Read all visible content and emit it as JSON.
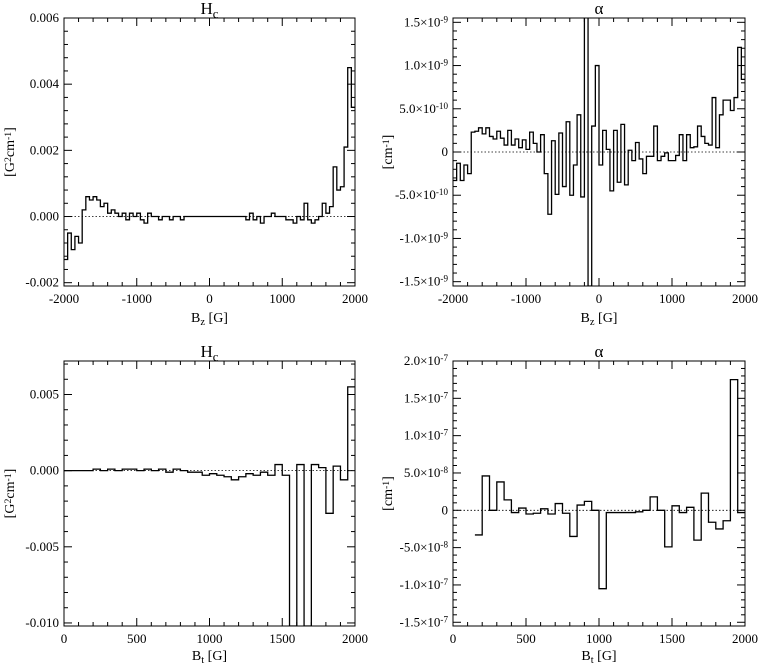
{
  "chart_data": [
    {
      "type": "line",
      "title": "Hc",
      "xlabel": "Bz [G]",
      "ylabel": "[G²cm⁻¹]",
      "xlim": [
        -2000,
        2000
      ],
      "ylim": [
        -0.0021,
        0.006
      ],
      "xticks": [
        -2000,
        -1000,
        0,
        1000,
        2000
      ],
      "yticks": [
        -0.002,
        0.0,
        0.002,
        0.004,
        0.006
      ],
      "ytick_labels": [
        "-0.002",
        "0.000",
        "0.002",
        "0.004",
        "0.006"
      ],
      "zero_line": true,
      "step": true,
      "series": [
        {
          "x": [
            -2000,
            -1950,
            -1900,
            -1850,
            -1800,
            -1750,
            -1700,
            -1650,
            -1600,
            -1550,
            -1500,
            -1450,
            -1400,
            -1350,
            -1300,
            -1250,
            -1200,
            -1150,
            -1100,
            -1050,
            -1000,
            -950,
            -900,
            -850,
            -800,
            -750,
            -700,
            -650,
            -600,
            -550,
            -500,
            -450,
            -400,
            -350,
            -300,
            -250,
            -200,
            -150,
            -100,
            -50,
            0,
            50,
            100,
            150,
            200,
            250,
            300,
            350,
            400,
            450,
            500,
            550,
            600,
            650,
            700,
            750,
            800,
            850,
            900,
            950,
            1000,
            1050,
            1100,
            1150,
            1200,
            1250,
            1300,
            1350,
            1400,
            1450,
            1500,
            1550,
            1600,
            1650,
            1700,
            1750,
            1800,
            1850,
            1900,
            1950
          ],
          "y": [
            -0.0013,
            -0.0005,
            -0.001,
            -0.0006,
            -0.0008,
            0.0002,
            0.0006,
            0.0005,
            0.0006,
            0.0005,
            0.0003,
            0.0004,
            0.0001,
            0.0002,
            0.0001,
            0.0,
            0.0001,
            -0.0001,
            0.0001,
            0.0,
            0.0001,
            -0.0001,
            -0.0002,
            0.0001,
            0.0,
            0.0,
            -0.0001,
            0.0,
            0.0,
            -0.0001,
            0.0,
            0.0,
            -0.0001,
            0.0,
            0.0,
            0.0,
            0.0,
            0.0,
            0.0,
            0.0,
            0.0,
            0.0,
            0.0,
            0.0,
            0.0,
            0.0,
            0.0,
            0.0,
            0.0,
            0.0,
            -0.0001,
            0.0001,
            -0.0001,
            0.0,
            -0.0002,
            0.0,
            0.0,
            0.0001,
            0.0,
            0.0,
            0.0,
            -0.0001,
            -0.0001,
            -0.0002,
            0.0,
            -0.0001,
            0.0004,
            -0.0001,
            -0.0002,
            -0.0001,
            0.0,
            0.0004,
            0.0001,
            0.0003,
            0.0015,
            0.0008,
            0.0009,
            0.0021,
            0.0045,
            0.0033
          ]
        }
      ]
    },
    {
      "type": "line",
      "title": "α",
      "xlabel": "Bz [G]",
      "ylabel": "[cm⁻¹]",
      "xlim": [
        -2000,
        2000
      ],
      "ylim": [
        -1.55e-09,
        1.55e-09
      ],
      "xticks": [
        -2000,
        -1000,
        0,
        1000,
        2000
      ],
      "yticks": [
        -1.5e-09,
        -1e-09,
        -5e-10,
        0,
        5e-10,
        1e-09,
        1.5e-09
      ],
      "ytick_labels": [
        {
          "m": "-1.5×10",
          "e": "-9"
        },
        {
          "m": "-1.0×10",
          "e": "-9"
        },
        {
          "m": "-5.0×10",
          "e": "-10"
        },
        {
          "m": "0",
          "e": ""
        },
        {
          "m": "5.0×10",
          "e": "-10"
        },
        {
          "m": "1.0×10",
          "e": "-9"
        },
        {
          "m": "1.5×10",
          "e": "-9"
        }
      ],
      "zero_line": true,
      "step": true,
      "series": [
        {
          "x": [
            -2000,
            -1950,
            -1900,
            -1850,
            -1800,
            -1750,
            -1700,
            -1650,
            -1600,
            -1550,
            -1500,
            -1450,
            -1400,
            -1350,
            -1300,
            -1250,
            -1200,
            -1150,
            -1100,
            -1050,
            -1000,
            -950,
            -900,
            -850,
            -800,
            -750,
            -700,
            -650,
            -600,
            -550,
            -500,
            -450,
            -400,
            -350,
            -300,
            -250,
            -200,
            -150,
            -100,
            -50,
            0,
            50,
            100,
            150,
            200,
            250,
            300,
            350,
            400,
            450,
            500,
            550,
            600,
            650,
            700,
            750,
            800,
            850,
            900,
            950,
            1000,
            1050,
            1100,
            1150,
            1200,
            1250,
            1300,
            1350,
            1400,
            1450,
            1500,
            1550,
            1600,
            1650,
            1700,
            1750,
            1800,
            1850,
            1900,
            1950
          ],
          "y": [
            -3.3e-10,
            -1.3e-10,
            -3.3e-10,
            -1.5e-10,
            -2.5e-10,
            2.3e-10,
            2.4e-10,
            2.8e-10,
            2.1e-10,
            2.8e-10,
            1.8e-10,
            1.5e-10,
            2.4e-10,
            1.6e-10,
            8e-11,
            2.5e-10,
            8e-11,
            1.5e-10,
            5e-11,
            1.4e-10,
            3e-11,
            2.3e-10,
            1e-10,
            0,
            2e-10,
            -2.5e-10,
            -7.2e-10,
            1.3e-10,
            -4.9e-10,
            2.2e-10,
            -4e-10,
            3.5e-10,
            -5e-10,
            -1.5e-10,
            4.3e-10,
            -5.2e-10,
            1.62e-09,
            -1.55e-09,
            3e-10,
            1e-09,
            -1.5e-10,
            2.5e-10,
            3e-11,
            -4.5e-10,
            2.5e-10,
            -3.5e-10,
            3.2e-10,
            -3.8e-10,
            2e-11,
            -1e-10,
            1.1e-10,
            -8e-11,
            -2.5e-10,
            -5e-11,
            -5e-11,
            3e-10,
            -1e-10,
            -5e-11,
            -1e-11,
            -1e-10,
            -1e-10,
            -4e-11,
            2e-10,
            -1e-10,
            2e-10,
            5e-11,
            6e-11,
            3e-10,
            1.8e-10,
            1e-10,
            8e-11,
            6.3e-10,
            5e-11,
            4.3e-10,
            6e-10,
            6e-10,
            4.8e-10,
            6.3e-10,
            1.21e-09,
            8.4e-10
          ]
        }
      ]
    },
    {
      "type": "line",
      "title": "Hc",
      "xlabel": "Bt [G]",
      "ylabel": "[G²cm⁻¹]",
      "xlim": [
        0,
        2000
      ],
      "ylim": [
        -0.0102,
        0.0072
      ],
      "xticks": [
        0,
        500,
        1000,
        1500,
        2000
      ],
      "yticks": [
        -0.01,
        -0.005,
        0.0,
        0.005
      ],
      "ytick_labels": [
        "-0.010",
        "-0.005",
        "0.000",
        "0.005"
      ],
      "zero_line": true,
      "step": true,
      "series": [
        {
          "x": [
            0,
            50,
            100,
            150,
            200,
            250,
            300,
            350,
            400,
            450,
            500,
            550,
            600,
            650,
            700,
            750,
            800,
            850,
            900,
            950,
            1000,
            1050,
            1100,
            1150,
            1200,
            1250,
            1300,
            1350,
            1400,
            1450,
            1500,
            1550,
            1600,
            1650,
            1700,
            1750,
            1800,
            1850,
            1900,
            1950
          ],
          "y": [
            0.0,
            0.0,
            0.0,
            0.0,
            0.0001,
            0.0,
            0.0001,
            0.0,
            0.0001,
            0.0001,
            0.0,
            0.0001,
            0.0,
            0.0001,
            -0.0001,
            0.0001,
            0.0,
            -0.0001,
            -0.0001,
            -0.0003,
            -0.0002,
            -0.0003,
            -0.0004,
            -0.0006,
            -0.0004,
            -0.0002,
            -0.0003,
            -0.0001,
            -0.0003,
            0.0004,
            -0.0003,
            -0.0102,
            0.0004,
            -0.0102,
            0.0004,
            0.0002,
            -0.0028,
            0.0003,
            -0.0006,
            0.0055
          ]
        }
      ]
    },
    {
      "type": "line",
      "title": "α",
      "xlabel": "Bt [G]",
      "ylabel": "[cm⁻¹]",
      "xlim": [
        0,
        2000
      ],
      "ylim": [
        -1.55e-07,
        2e-07
      ],
      "xticks": [
        0,
        500,
        1000,
        1500,
        2000
      ],
      "yticks": [
        -1.5e-07,
        -1e-07,
        -5e-08,
        0,
        5e-08,
        1e-07,
        1.5e-07,
        2e-07
      ],
      "ytick_labels": [
        {
          "m": "-1.5×10",
          "e": "-7"
        },
        {
          "m": "-1.0×10",
          "e": "-7"
        },
        {
          "m": "-5.0×10",
          "e": "-8"
        },
        {
          "m": "0",
          "e": ""
        },
        {
          "m": "5.0×10",
          "e": "-8"
        },
        {
          "m": "1.0×10",
          "e": "-7"
        },
        {
          "m": "1.5×10",
          "e": "-7"
        },
        {
          "m": "2.0×10",
          "e": "-7"
        }
      ],
      "zero_line": true,
      "step": true,
      "series": [
        {
          "x": [
            150,
            200,
            250,
            300,
            350,
            400,
            450,
            500,
            550,
            600,
            650,
            700,
            750,
            800,
            850,
            900,
            950,
            1000,
            1050,
            1100,
            1150,
            1200,
            1250,
            1300,
            1350,
            1400,
            1450,
            1500,
            1550,
            1600,
            1650,
            1700,
            1750,
            1800,
            1850,
            1900,
            1950
          ],
          "y": [
            -3.3e-08,
            4.6e-08,
            0,
            3.8e-08,
            1.4e-08,
            -3e-09,
            3e-09,
            -5e-09,
            -4e-09,
            2e-09,
            -5e-09,
            9e-09,
            -4e-09,
            -3.5e-08,
            7e-09,
            1.2e-08,
            0,
            -1.05e-07,
            -3e-09,
            -3e-09,
            -3e-09,
            -3e-09,
            -2e-09,
            0,
            1.8e-08,
            0,
            -4.9e-08,
            6e-09,
            -3e-09,
            4e-09,
            -4e-08,
            2.3e-08,
            -1.6e-08,
            -2.5e-08,
            -1.4e-08,
            1.75e-07,
            -3e-09
          ]
        }
      ]
    }
  ]
}
